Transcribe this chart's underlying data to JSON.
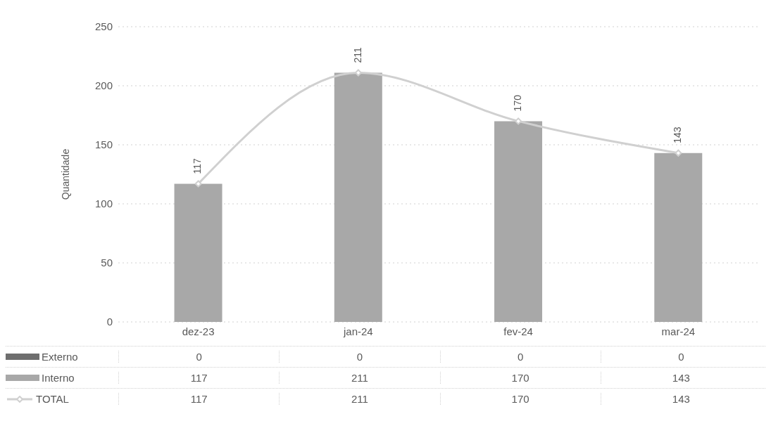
{
  "chart_data": {
    "type": "bar",
    "ylabel": "Quantidade",
    "categories": [
      "dez-23",
      "jan-24",
      "fev-24",
      "mar-24"
    ],
    "series": [
      {
        "name": "Externo",
        "color": "#6e6e6e",
        "values": [
          0,
          0,
          0,
          0
        ]
      },
      {
        "name": "Interno",
        "color": "#a8a8a8",
        "values": [
          117,
          211,
          170,
          143
        ]
      },
      {
        "name": "TOTAL",
        "type": "line",
        "color": "#d0d0d0",
        "values": [
          117,
          211,
          170,
          143
        ]
      }
    ],
    "stacked": true,
    "ylim": [
      0,
      250
    ],
    "yticks": [
      0,
      50,
      100,
      150,
      200,
      250
    ],
    "grid": "y",
    "legend": "bottom",
    "marker": "diamond",
    "data_labels": true,
    "annotations": [
      {
        "text": "117",
        "x": "dez-23",
        "y": 117
      },
      {
        "text": "211",
        "x": "jan-24",
        "y": 211
      },
      {
        "text": "170",
        "x": "fev-24",
        "y": 170
      },
      {
        "text": "143",
        "x": "mar-24",
        "y": 143
      }
    ]
  }
}
